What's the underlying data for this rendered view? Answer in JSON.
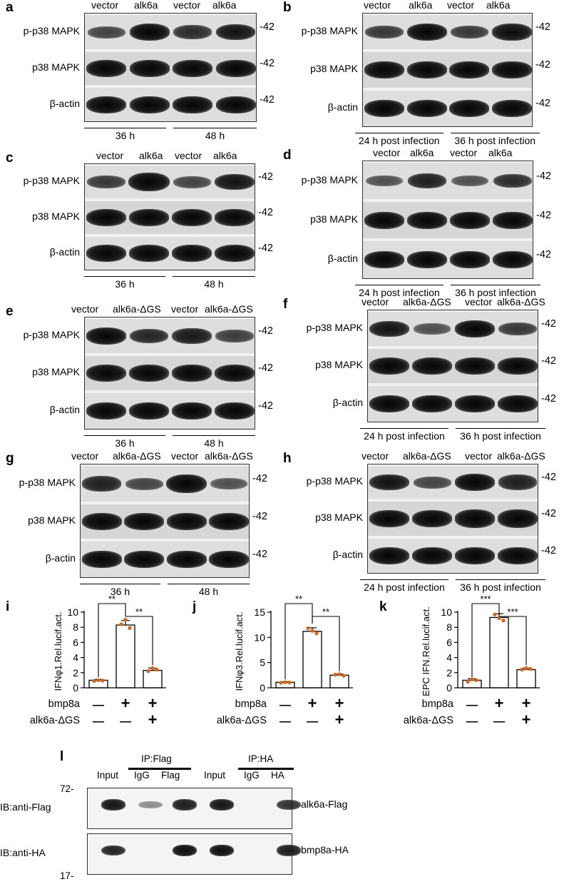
{
  "panels": {
    "a": {
      "letter": "a",
      "lanes": [
        "vector",
        "alk6a",
        "vector",
        "alk6a"
      ],
      "rows": [
        "p-p38 MAPK",
        "p38 MAPK",
        "β-actin"
      ],
      "mw": "-42",
      "groups": [
        "36 h",
        "48 h"
      ]
    },
    "b": {
      "letter": "b",
      "lanes": [
        "vector",
        "alk6a",
        "vector",
        "alk6a"
      ],
      "rows": [
        "p-p38 MAPK",
        "p38 MAPK",
        "β-actin"
      ],
      "mw": "-42",
      "groups": [
        "24 h post infection",
        "36 h post infection"
      ]
    },
    "c": {
      "letter": "c",
      "lanes": [
        "vector",
        "alk6a",
        "vector",
        "alk6a"
      ],
      "rows": [
        "p-p38 MAPK",
        "p38 MAPK",
        "β-actin"
      ],
      "mw": "-42",
      "groups": [
        "36 h",
        "48 h"
      ]
    },
    "d": {
      "letter": "d",
      "lanes": [
        "vector",
        "alk6a",
        "vector",
        "alk6a"
      ],
      "rows": [
        "p-p38 MAPK",
        "p38 MAPK",
        "β-actin"
      ],
      "mw": "-42",
      "groups": [
        "24 h post infection",
        "36 h post infection"
      ]
    },
    "e": {
      "letter": "e",
      "lanes": [
        "vector",
        "alk6a-ΔGS",
        "vector",
        "alk6a-ΔGS"
      ],
      "rows": [
        "p-p38 MAPK",
        "p38 MAPK",
        "β-actin"
      ],
      "mw": "-42",
      "groups": [
        "36 h",
        "48 h"
      ]
    },
    "f": {
      "letter": "f",
      "lanes": [
        "vector",
        "alk6a-ΔGS",
        "vector",
        "alk6a-ΔGS"
      ],
      "rows": [
        "p-p38 MAPK",
        "p38 MAPK",
        "β-actin"
      ],
      "mw": "-42",
      "groups": [
        "24 h post infection",
        "36 h post infection"
      ]
    },
    "g": {
      "letter": "g",
      "lanes": [
        "vector",
        "alk6a-ΔGS",
        "vector",
        "alk6a-ΔGS"
      ],
      "rows": [
        "p-p38 MAPK",
        "p38 MAPK",
        "β-actin"
      ],
      "mw": "-42",
      "groups": [
        "36 h",
        "48 h"
      ]
    },
    "h": {
      "letter": "h",
      "lanes": [
        "vector",
        "alk6a-ΔGS",
        "vector",
        "alk6a-ΔGS"
      ],
      "rows": [
        "p-p38 MAPK",
        "p38 MAPK",
        "β-actin"
      ],
      "mw": "-42",
      "groups": [
        "24 h post infection",
        "36 h post infection"
      ]
    },
    "l": {
      "letter": "l",
      "ip_flag": "IP:Flag",
      "ip_ha": "IP:HA",
      "lanes": [
        "Input",
        "IgG",
        "Flag",
        "Input",
        "IgG",
        "HA"
      ],
      "ib_flag": "IB:anti-Flag",
      "ib_ha": "IB:anti-HA",
      "mw_top": "72-",
      "mw_bottom": "17-",
      "right_flag": "alk6a-Flag",
      "right_ha": "bmp8a-HA"
    }
  },
  "chart_data": [
    {
      "type": "bar",
      "letter": "i",
      "ylabel": "IFNφ1.Rel.lucif.act.",
      "ylim": [
        0,
        10
      ],
      "yticks": [
        0,
        2,
        4,
        6,
        8,
        10
      ],
      "values": [
        1.0,
        8.3,
        2.3
      ],
      "errors": [
        0.1,
        0.6,
        0.3
      ],
      "points": [
        [
          0.9,
          1.0,
          0.95
        ],
        [
          8.4,
          9.0,
          7.9
        ],
        [
          2.2,
          2.6,
          2.4
        ]
      ],
      "sig": [
        "**",
        "**"
      ],
      "conditions": [
        {
          "label": "bmp8a",
          "signs": [
            "—",
            "+",
            "+"
          ]
        },
        {
          "label": "alk6a-ΔGS",
          "signs": [
            "—",
            "—",
            "+"
          ]
        }
      ]
    },
    {
      "type": "bar",
      "letter": "j",
      "ylabel": "IFNφ3.Rel.lucif.act.",
      "ylim": [
        0,
        15
      ],
      "yticks": [
        0,
        5,
        10,
        15
      ],
      "values": [
        1.1,
        11.2,
        2.5
      ],
      "errors": [
        0.1,
        0.7,
        0.2
      ],
      "points": [
        [
          1.0,
          1.1,
          1.05
        ],
        [
          11.8,
          11.3,
          10.8
        ],
        [
          2.6,
          2.7,
          2.4
        ]
      ],
      "sig": [
        "**",
        "**"
      ],
      "conditions": [
        {
          "label": "bmp8a",
          "signs": [
            "—",
            "+",
            "+"
          ]
        },
        {
          "label": "alk6a-ΔGS",
          "signs": [
            "—",
            "—",
            "+"
          ]
        }
      ]
    },
    {
      "type": "bar",
      "letter": "k",
      "ylabel": "EPC IFN.Rel.lucif.act.",
      "ylim": [
        0,
        10
      ],
      "yticks": [
        0,
        2,
        4,
        6,
        8,
        10
      ],
      "values": [
        1.0,
        9.3,
        2.4
      ],
      "errors": [
        0.2,
        0.5,
        0.2
      ],
      "points": [
        [
          0.8,
          1.1,
          1.0
        ],
        [
          9.7,
          9.2,
          8.9
        ],
        [
          2.4,
          2.6,
          2.5
        ]
      ],
      "sig": [
        "***",
        "***"
      ],
      "conditions": [
        {
          "label": "bmp8a",
          "signs": [
            "—",
            "+",
            "+"
          ]
        },
        {
          "label": "alk6a-ΔGS",
          "signs": [
            "—",
            "—",
            "+"
          ]
        }
      ]
    }
  ]
}
